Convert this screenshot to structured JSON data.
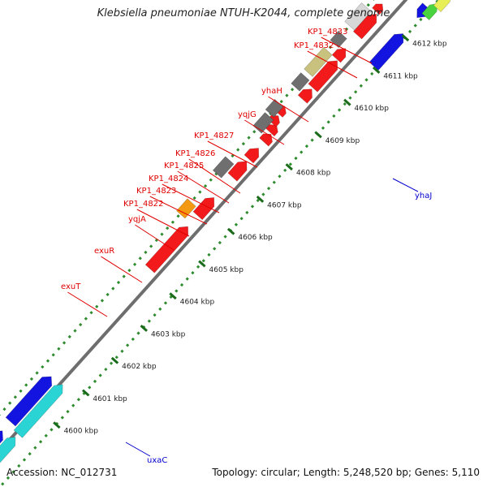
{
  "title": "Klebsiella pneumoniae NTUH-K2044, complete genome",
  "accession": "Accession: NC_012731",
  "summary": "Topology: circular; Length: 5,248,520 bp; Genes: 5,110",
  "colors": {
    "gene_label": "#e00000",
    "small_label": "#0000cc",
    "tick_label": "#222222",
    "dot_track": "#2e8b2e",
    "backbone": "#6e6e6e"
  },
  "ticks": [
    "4600 kbp",
    "4601 kbp",
    "4602 kbp",
    "4603 kbp",
    "4604 kbp",
    "4605 kbp",
    "4606 kbp",
    "4607 kbp",
    "4608 kbp",
    "4609 kbp",
    "4610 kbp",
    "4611 kbp",
    "4612 kbp"
  ],
  "outer_labels": [
    "exuT",
    "exuR",
    "yqjA",
    "KP1_4822",
    "KP1_4823",
    "KP1_4824",
    "KP1_4825",
    "KP1_4826",
    "KP1_4827",
    "yqjG",
    "yhaH",
    "KP1_4832",
    "KP1_4833"
  ],
  "inner_labels": [
    "uxaC",
    "yhaJ"
  ]
}
